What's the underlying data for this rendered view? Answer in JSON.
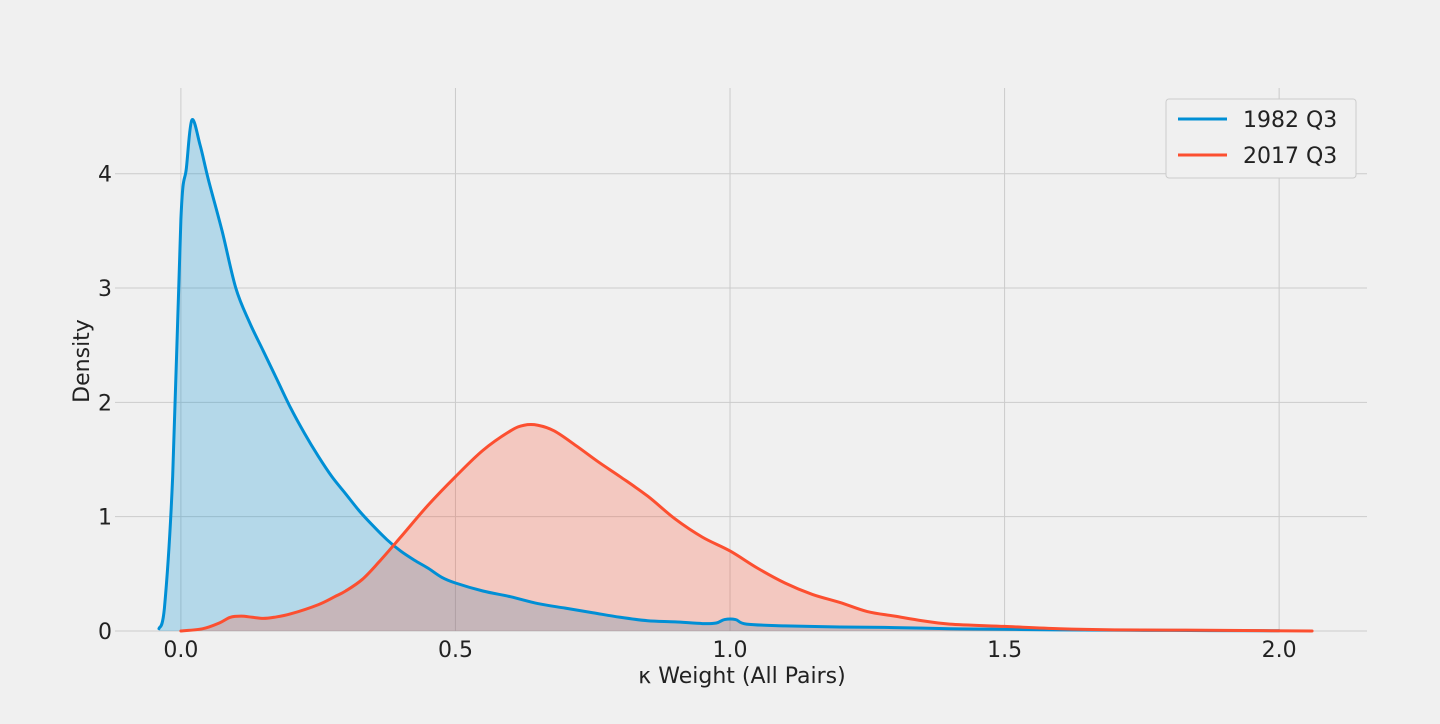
{
  "chart_data": {
    "type": "area",
    "title": "",
    "xlabel": "κ Weight (All Pairs)",
    "ylabel": "Density",
    "xlim": [
      -0.12,
      2.16
    ],
    "ylim": [
      0,
      4.75
    ],
    "x_ticks": [
      0.0,
      0.5,
      1.0,
      1.5,
      2.0
    ],
    "x_tick_labels": [
      "0.0",
      "0.5",
      "1.0",
      "1.5",
      "2.0"
    ],
    "y_ticks": [
      0,
      1,
      2,
      3,
      4
    ],
    "y_tick_labels": [
      "0",
      "1",
      "2",
      "3",
      "4"
    ],
    "grid": true,
    "legend_position": "top-right",
    "colors": {
      "background": "#f0f0f0",
      "grid": "#cbcbcb",
      "series_1982": "#008fd5",
      "series_2017": "#fc4f30",
      "fill_1982": "#008fd5",
      "fill_2017": "#fc4f30"
    },
    "series": [
      {
        "name": "1982 Q3",
        "color": "#008fd5",
        "points": [
          [
            -0.04,
            0.02
          ],
          [
            -0.03,
            0.2
          ],
          [
            -0.015,
            1.35
          ],
          [
            0.0,
            3.6
          ],
          [
            0.01,
            4.05
          ],
          [
            0.02,
            4.47
          ],
          [
            0.035,
            4.25
          ],
          [
            0.05,
            3.95
          ],
          [
            0.075,
            3.5
          ],
          [
            0.1,
            3.0
          ],
          [
            0.125,
            2.7
          ],
          [
            0.15,
            2.45
          ],
          [
            0.175,
            2.2
          ],
          [
            0.2,
            1.95
          ],
          [
            0.225,
            1.73
          ],
          [
            0.25,
            1.53
          ],
          [
            0.275,
            1.35
          ],
          [
            0.3,
            1.2
          ],
          [
            0.325,
            1.05
          ],
          [
            0.35,
            0.92
          ],
          [
            0.375,
            0.8
          ],
          [
            0.4,
            0.7
          ],
          [
            0.425,
            0.62
          ],
          [
            0.45,
            0.55
          ],
          [
            0.475,
            0.47
          ],
          [
            0.5,
            0.42
          ],
          [
            0.55,
            0.35
          ],
          [
            0.6,
            0.3
          ],
          [
            0.65,
            0.24
          ],
          [
            0.7,
            0.2
          ],
          [
            0.75,
            0.16
          ],
          [
            0.8,
            0.12
          ],
          [
            0.85,
            0.09
          ],
          [
            0.9,
            0.08
          ],
          [
            0.95,
            0.065
          ],
          [
            0.975,
            0.07
          ],
          [
            0.99,
            0.1
          ],
          [
            1.01,
            0.1
          ],
          [
            1.03,
            0.06
          ],
          [
            1.1,
            0.045
          ],
          [
            1.2,
            0.035
          ],
          [
            1.3,
            0.03
          ],
          [
            1.4,
            0.02
          ],
          [
            1.5,
            0.015
          ],
          [
            1.6,
            0.01
          ],
          [
            1.8,
            0.005
          ],
          [
            2.0,
            0.002
          ]
        ]
      },
      {
        "name": "2017 Q3",
        "color": "#fc4f30",
        "points": [
          [
            0.0,
            0.0
          ],
          [
            0.04,
            0.02
          ],
          [
            0.07,
            0.07
          ],
          [
            0.09,
            0.12
          ],
          [
            0.11,
            0.13
          ],
          [
            0.13,
            0.12
          ],
          [
            0.15,
            0.11
          ],
          [
            0.17,
            0.12
          ],
          [
            0.2,
            0.15
          ],
          [
            0.25,
            0.23
          ],
          [
            0.28,
            0.3
          ],
          [
            0.3,
            0.35
          ],
          [
            0.33,
            0.45
          ],
          [
            0.36,
            0.6
          ],
          [
            0.4,
            0.82
          ],
          [
            0.45,
            1.1
          ],
          [
            0.5,
            1.35
          ],
          [
            0.55,
            1.58
          ],
          [
            0.6,
            1.75
          ],
          [
            0.625,
            1.8
          ],
          [
            0.65,
            1.8
          ],
          [
            0.68,
            1.75
          ],
          [
            0.72,
            1.62
          ],
          [
            0.76,
            1.48
          ],
          [
            0.8,
            1.35
          ],
          [
            0.85,
            1.18
          ],
          [
            0.9,
            0.98
          ],
          [
            0.95,
            0.82
          ],
          [
            1.0,
            0.7
          ],
          [
            1.05,
            0.55
          ],
          [
            1.1,
            0.42
          ],
          [
            1.15,
            0.32
          ],
          [
            1.2,
            0.25
          ],
          [
            1.25,
            0.17
          ],
          [
            1.3,
            0.13
          ],
          [
            1.35,
            0.09
          ],
          [
            1.4,
            0.06
          ],
          [
            1.5,
            0.04
          ],
          [
            1.6,
            0.02
          ],
          [
            1.7,
            0.01
          ],
          [
            1.8,
            0.008
          ],
          [
            1.9,
            0.005
          ],
          [
            2.06,
            0.0
          ]
        ]
      }
    ]
  }
}
